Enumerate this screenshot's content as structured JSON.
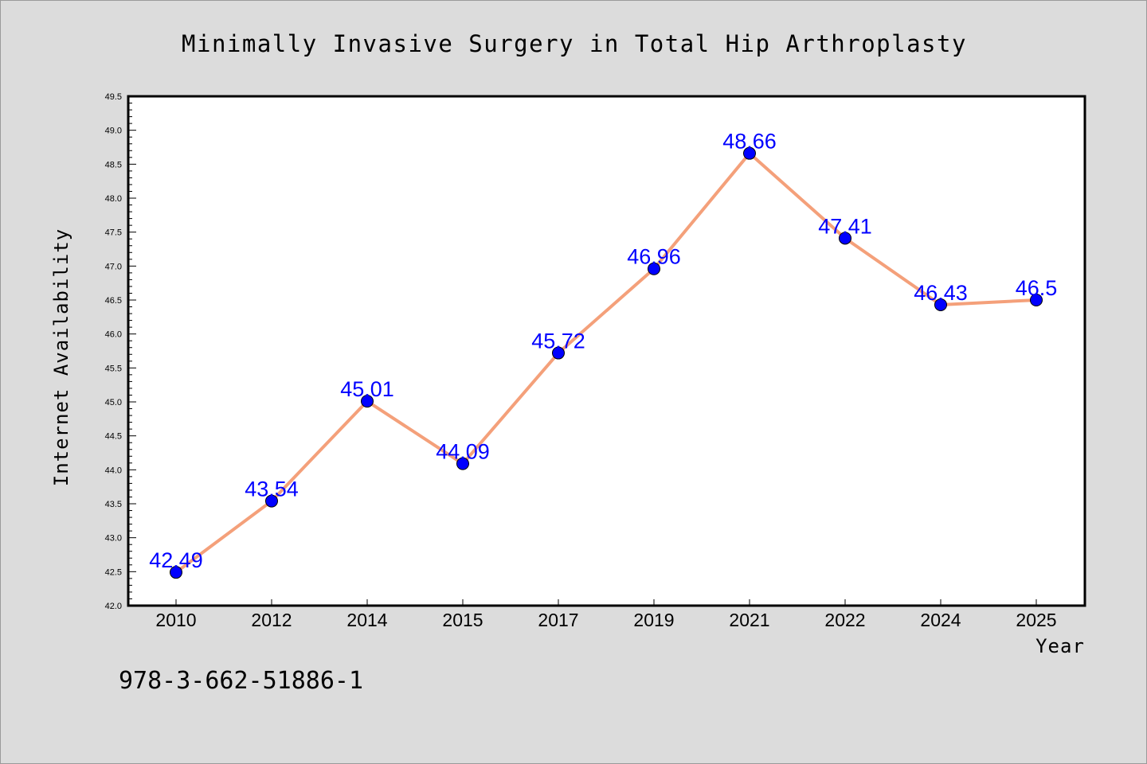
{
  "chart_data": {
    "type": "line",
    "title": "Minimally Invasive Surgery in Total Hip Arthroplasty",
    "xlabel": "Year",
    "ylabel": "Internet Availability",
    "categories": [
      "2010",
      "2012",
      "2014",
      "2015",
      "2017",
      "2019",
      "2021",
      "2022",
      "2024",
      "2025"
    ],
    "series": [
      {
        "values": [
          42.49,
          43.54,
          45.01,
          44.09,
          45.72,
          46.96,
          48.66,
          47.41,
          46.43,
          46.5
        ],
        "labels": [
          "42.49",
          "43.54",
          "45.01",
          "44.09",
          "45.72",
          "46.96",
          "48.66",
          "47.41",
          "46.43",
          "46.5"
        ],
        "line_color": "#f4a07a",
        "marker_color": "#0000ff",
        "label_color": "#0000ff"
      }
    ],
    "ylim": [
      42.0,
      49.5
    ],
    "y_ticks": [
      "42.0",
      "42.5",
      "43.0",
      "43.5",
      "44.0",
      "44.5",
      "45.0",
      "45.5",
      "46.0",
      "46.5",
      "47.0",
      "47.5",
      "48.0",
      "48.5",
      "49.0",
      "49.5"
    ],
    "grid": false,
    "legend": "none"
  },
  "footer": {
    "isbn": "978-3-662-51886-1"
  },
  "colors": {
    "background": "#dcdcdc",
    "plot_area": "#ffffff",
    "axis": "#000000"
  }
}
